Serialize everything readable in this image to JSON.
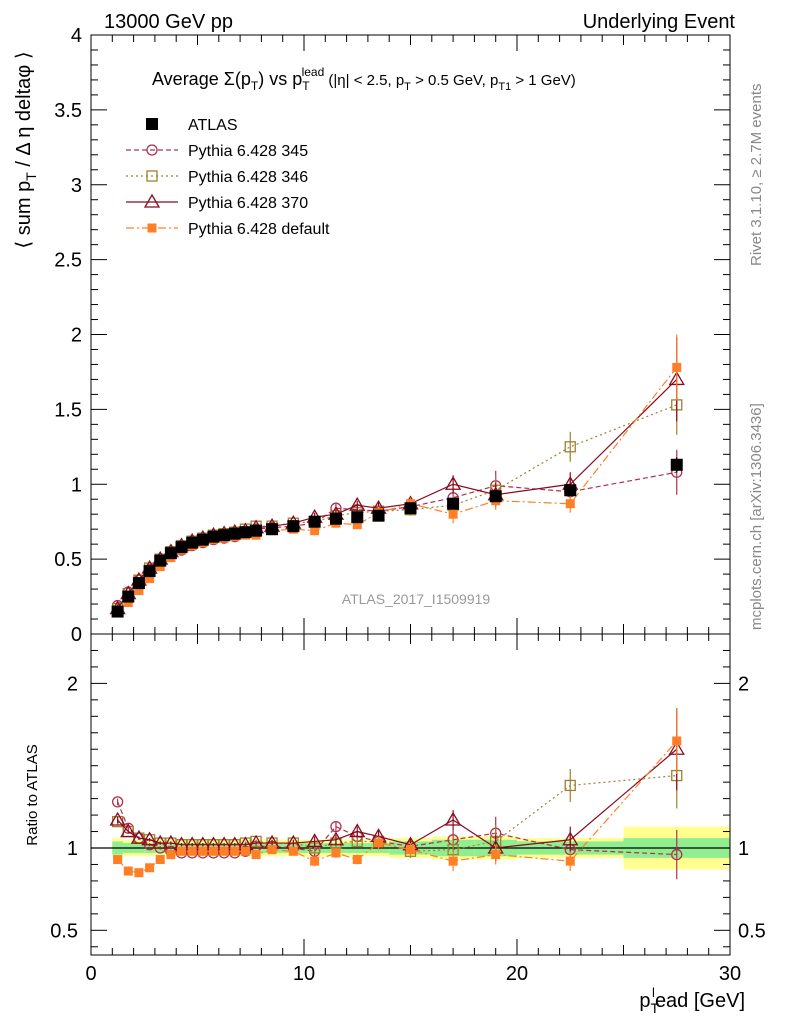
{
  "header": {
    "left": "13000 GeV pp",
    "right": "Underlying Event"
  },
  "side_text": {
    "rivet": "Rivet 3.1.10, ≥ 2.7M events",
    "mcplots": "mcplots.cern.ch [arXiv:1306.3436]"
  },
  "colors": {
    "atlas": "#000000",
    "pythia345": "#b03050",
    "pythia346": "#a08030",
    "pythia370": "#8b0a1e",
    "pythia_default": "#ff7f27",
    "band_inner": "#90ee90",
    "band_outer": "#ffff90"
  },
  "chart_data": [
    {
      "type": "scatter",
      "panel": "main",
      "title": "Average Σ(p_T) vs p_T^lead (|η| < 2.5, p_T > 0.5 GeV, p_T1 > 1 GeV)",
      "ylabel": "⟨ sum p_T / Δ η deltaφ ⟩",
      "xlabel": "p_T^lead [GeV]",
      "watermark": "ATLAS_2017_I1509919",
      "xlim": [
        0,
        30
      ],
      "ylim": [
        0,
        4
      ],
      "yticks": [
        0,
        0.5,
        1,
        1.5,
        2,
        2.5,
        3,
        3.5,
        4
      ],
      "ytick_labels": [
        "0",
        "0.5",
        "1",
        "1.5",
        "2",
        "2.5",
        "3",
        "3.5",
        "4"
      ],
      "legend_position": "top-left",
      "x": [
        1.25,
        1.75,
        2.25,
        2.75,
        3.25,
        3.75,
        4.25,
        4.75,
        5.25,
        5.75,
        6.25,
        6.75,
        7.25,
        7.75,
        8.5,
        9.5,
        10.5,
        11.5,
        12.5,
        13.5,
        15,
        17,
        19,
        22.5,
        27.5
      ],
      "series": [
        {
          "name": "ATLAS",
          "marker": "filled-square",
          "line": "none",
          "values": [
            0.15,
            0.25,
            0.34,
            0.42,
            0.49,
            0.54,
            0.58,
            0.61,
            0.63,
            0.65,
            0.66,
            0.67,
            0.68,
            0.69,
            0.7,
            0.72,
            0.75,
            0.77,
            0.78,
            0.79,
            0.84,
            0.87,
            0.92,
            0.96,
            1.13
          ],
          "errors": [
            0.01,
            0.01,
            0.01,
            0.01,
            0.01,
            0.01,
            0.01,
            0.01,
            0.01,
            0.01,
            0.01,
            0.01,
            0.01,
            0.01,
            0.01,
            0.01,
            0.01,
            0.01,
            0.01,
            0.01,
            0.02,
            0.02,
            0.02,
            0.03,
            0.05
          ]
        },
        {
          "name": "Pythia 6.428 345",
          "marker": "open-circle",
          "line": "dashed",
          "values": [
            0.19,
            0.28,
            0.36,
            0.43,
            0.49,
            0.53,
            0.56,
            0.59,
            0.61,
            0.63,
            0.64,
            0.65,
            0.67,
            0.7,
            0.71,
            0.72,
            0.74,
            0.84,
            0.83,
            0.82,
            0.85,
            0.91,
            0.99,
            0.95,
            1.08
          ],
          "errors": [
            0.01,
            0.01,
            0.01,
            0.01,
            0.01,
            0.01,
            0.01,
            0.01,
            0.01,
            0.01,
            0.01,
            0.01,
            0.01,
            0.01,
            0.02,
            0.02,
            0.03,
            0.03,
            0.03,
            0.04,
            0.04,
            0.06,
            0.1,
            0.08,
            0.15
          ]
        },
        {
          "name": "Pythia 6.428 346",
          "marker": "open-square",
          "line": "dotted",
          "values": [
            0.17,
            0.27,
            0.36,
            0.44,
            0.5,
            0.55,
            0.59,
            0.62,
            0.64,
            0.66,
            0.67,
            0.68,
            0.7,
            0.72,
            0.72,
            0.74,
            0.75,
            0.79,
            0.81,
            0.82,
            0.83,
            0.86,
            0.96,
            1.25,
            1.53
          ],
          "errors": [
            0.01,
            0.01,
            0.01,
            0.01,
            0.01,
            0.01,
            0.01,
            0.01,
            0.01,
            0.01,
            0.01,
            0.01,
            0.01,
            0.01,
            0.02,
            0.02,
            0.03,
            0.03,
            0.03,
            0.04,
            0.04,
            0.06,
            0.1,
            0.1,
            0.2
          ]
        },
        {
          "name": "Pythia 6.428 370",
          "marker": "open-triangle",
          "line": "solid",
          "values": [
            0.17,
            0.27,
            0.36,
            0.44,
            0.5,
            0.55,
            0.59,
            0.62,
            0.64,
            0.66,
            0.67,
            0.68,
            0.69,
            0.71,
            0.72,
            0.74,
            0.78,
            0.8,
            0.86,
            0.84,
            0.87,
            1.0,
            0.93,
            1.0,
            1.7
          ],
          "errors": [
            0.01,
            0.01,
            0.01,
            0.01,
            0.01,
            0.01,
            0.01,
            0.01,
            0.01,
            0.01,
            0.01,
            0.01,
            0.01,
            0.01,
            0.02,
            0.02,
            0.03,
            0.03,
            0.03,
            0.04,
            0.04,
            0.06,
            0.08,
            0.08,
            0.28
          ]
        },
        {
          "name": "Pythia 6.428 default",
          "marker": "filled-square-small",
          "line": "dash-dot",
          "values": [
            0.14,
            0.21,
            0.29,
            0.37,
            0.45,
            0.51,
            0.56,
            0.59,
            0.61,
            0.63,
            0.64,
            0.65,
            0.66,
            0.66,
            0.69,
            0.7,
            0.69,
            0.74,
            0.73,
            0.81,
            0.87,
            0.8,
            0.89,
            0.87,
            1.78
          ],
          "errors": [
            0.01,
            0.01,
            0.01,
            0.01,
            0.01,
            0.01,
            0.01,
            0.01,
            0.01,
            0.01,
            0.01,
            0.01,
            0.01,
            0.01,
            0.02,
            0.02,
            0.03,
            0.03,
            0.03,
            0.04,
            0.04,
            0.06,
            0.06,
            0.06,
            0.22
          ]
        }
      ]
    },
    {
      "type": "scatter",
      "panel": "ratio",
      "ylabel": "Ratio to ATLAS",
      "xlim": [
        0,
        30
      ],
      "ylim": [
        0.35,
        2.3
      ],
      "yticks": [
        0.5,
        1,
        2
      ],
      "ytick_labels": [
        "0.5",
        "1",
        "2"
      ],
      "xticks": [
        0,
        10,
        20,
        30
      ],
      "xtick_labels": [
        "0",
        "10",
        "20",
        "30"
      ],
      "reference_line": 1,
      "band": {
        "x_edges": [
          1,
          1.5,
          2,
          2.5,
          3,
          3.5,
          4,
          4.5,
          5,
          5.5,
          6,
          6.5,
          7,
          7.5,
          8,
          9,
          10,
          11,
          12,
          13,
          14,
          16,
          18,
          20,
          25,
          30
        ],
        "inner": [
          0.04,
          0.03,
          0.03,
          0.03,
          0.03,
          0.03,
          0.03,
          0.03,
          0.03,
          0.03,
          0.03,
          0.03,
          0.03,
          0.03,
          0.03,
          0.03,
          0.03,
          0.03,
          0.03,
          0.03,
          0.04,
          0.05,
          0.05,
          0.04,
          0.06
        ],
        "outer": [
          0.06,
          0.05,
          0.05,
          0.05,
          0.05,
          0.05,
          0.05,
          0.05,
          0.05,
          0.05,
          0.05,
          0.05,
          0.05,
          0.05,
          0.05,
          0.05,
          0.05,
          0.05,
          0.05,
          0.05,
          0.06,
          0.07,
          0.07,
          0.06,
          0.13
        ]
      },
      "series": [
        {
          "name": "Pythia 6.428 345",
          "values": [
            1.28,
            1.12,
            1.06,
            1.02,
            1.0,
            0.98,
            0.97,
            0.97,
            0.97,
            0.97,
            0.97,
            0.97,
            0.98,
            1.01,
            1.01,
            1.0,
            0.98,
            1.13,
            1.07,
            1.04,
            1.01,
            1.05,
            1.09,
            0.99,
            0.96
          ],
          "errors": [
            0.02,
            0.01,
            0.01,
            0.01,
            0.01,
            0.01,
            0.01,
            0.01,
            0.01,
            0.01,
            0.01,
            0.01,
            0.01,
            0.01,
            0.02,
            0.02,
            0.03,
            0.03,
            0.03,
            0.04,
            0.04,
            0.06,
            0.1,
            0.08,
            0.15
          ]
        },
        {
          "name": "Pythia 6.428 346",
          "values": [
            1.16,
            1.1,
            1.06,
            1.05,
            1.03,
            1.03,
            1.02,
            1.02,
            1.02,
            1.02,
            1.02,
            1.02,
            1.03,
            1.04,
            1.03,
            1.03,
            1.0,
            1.03,
            1.04,
            1.04,
            0.98,
            0.99,
            1.04,
            1.38,
            1.44
          ],
          "errors": [
            0.02,
            0.01,
            0.01,
            0.01,
            0.01,
            0.01,
            0.01,
            0.01,
            0.01,
            0.01,
            0.01,
            0.01,
            0.01,
            0.01,
            0.02,
            0.02,
            0.03,
            0.03,
            0.03,
            0.04,
            0.04,
            0.06,
            0.1,
            0.1,
            0.2
          ]
        },
        {
          "name": "Pythia 6.428 370",
          "values": [
            1.17,
            1.1,
            1.06,
            1.05,
            1.03,
            1.03,
            1.02,
            1.02,
            1.02,
            1.02,
            1.02,
            1.02,
            1.02,
            1.03,
            1.03,
            1.03,
            1.04,
            1.05,
            1.1,
            1.07,
            1.02,
            1.17,
            1.0,
            1.05,
            1.6
          ],
          "errors": [
            0.02,
            0.01,
            0.01,
            0.01,
            0.01,
            0.01,
            0.01,
            0.01,
            0.01,
            0.01,
            0.01,
            0.01,
            0.01,
            0.01,
            0.02,
            0.02,
            0.03,
            0.03,
            0.03,
            0.04,
            0.04,
            0.06,
            0.08,
            0.08,
            0.25
          ]
        },
        {
          "name": "Pythia 6.428 default",
          "values": [
            0.93,
            0.86,
            0.85,
            0.88,
            0.93,
            0.96,
            0.98,
            0.98,
            0.98,
            0.98,
            0.98,
            0.98,
            0.98,
            0.96,
            0.99,
            0.98,
            0.92,
            0.97,
            0.93,
            1.03,
            0.99,
            0.92,
            0.96,
            0.92,
            1.65
          ],
          "errors": [
            0.02,
            0.01,
            0.01,
            0.01,
            0.01,
            0.01,
            0.01,
            0.01,
            0.01,
            0.01,
            0.01,
            0.01,
            0.01,
            0.01,
            0.02,
            0.02,
            0.03,
            0.03,
            0.03,
            0.04,
            0.04,
            0.06,
            0.06,
            0.06,
            0.2
          ]
        }
      ]
    }
  ]
}
